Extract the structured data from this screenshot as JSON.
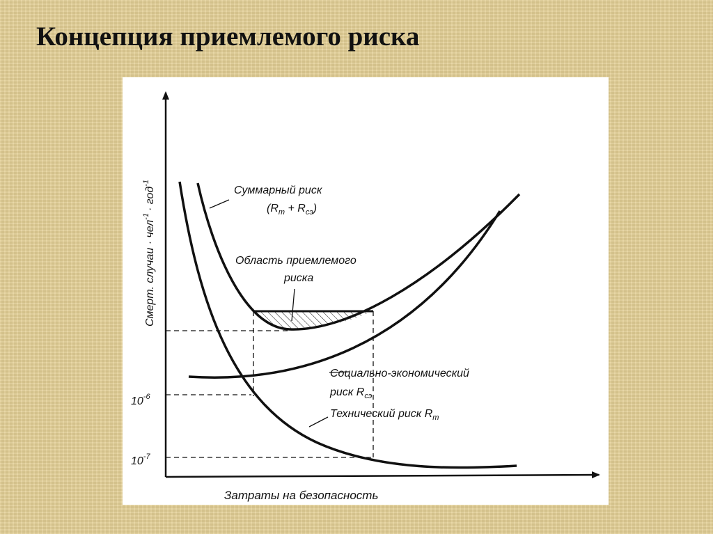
{
  "slide": {
    "title": "Концепция приемлемого риска"
  },
  "diagram": {
    "y_axis_label": "Смерт. случаи · чел",
    "y_axis_exp1": "-1",
    "y_axis_label_tail": "· год",
    "y_axis_exp2": "-1",
    "x_axis_label": "Затраты на безопасность",
    "tick_1e6_base": "10",
    "tick_1e6_exp": "-6",
    "tick_1e7_base": "10",
    "tick_1e7_exp": "-7",
    "total_risk_line1": "Суммарный риск",
    "total_risk_line2_open": "(R",
    "total_risk_sub_t": "т",
    "total_risk_plus": " + R",
    "total_risk_sub_se": "сэ",
    "total_risk_close": ")",
    "acceptable_line1": "Область приемлемого",
    "acceptable_line2": "риска",
    "socio_line1": "Социально-экономический",
    "socio_line2": "риск R",
    "socio_sub": "сэ",
    "tech_label": "Технический риск R",
    "tech_sub": "т"
  }
}
